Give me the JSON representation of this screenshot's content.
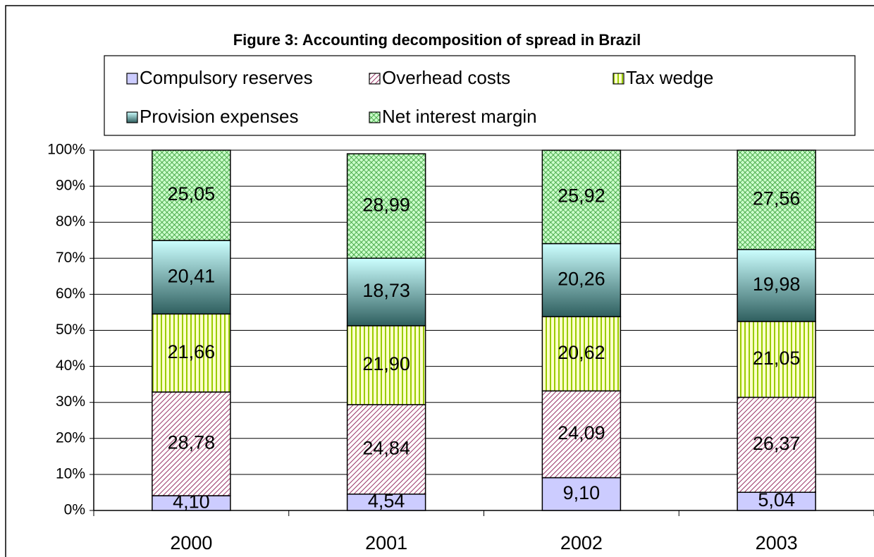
{
  "chart_data": {
    "type": "stacked_bar",
    "title": "Figure 3: Accounting decomposition of spread in Brazil",
    "categories": [
      "2000",
      "2001",
      "2002",
      "2003"
    ],
    "series": [
      {
        "name": "Compulsory reserves",
        "color": "#ccccff",
        "values": [
          4.1,
          4.54,
          9.1,
          5.04
        ],
        "value_labels": [
          "4,10",
          "4,54",
          "9,10",
          "5,04"
        ]
      },
      {
        "name": "Overhead costs",
        "color": "#993366",
        "values": [
          28.78,
          24.84,
          24.09,
          26.37
        ],
        "value_labels": [
          "28,78",
          "24,84",
          "24,09",
          "26,37"
        ]
      },
      {
        "name": "Tax wedge",
        "color": "#99cc00",
        "values": [
          21.66,
          21.9,
          20.62,
          21.05
        ],
        "value_labels": [
          "21,66",
          "21,90",
          "20,62",
          "21,05"
        ]
      },
      {
        "name": "Provision expenses",
        "color": "#339999",
        "values": [
          20.41,
          18.73,
          20.26,
          19.98
        ],
        "value_labels": [
          "20,41",
          "18,73",
          "20,26",
          "19,98"
        ]
      },
      {
        "name": "Net interest margin",
        "color": "#339933",
        "values": [
          25.05,
          28.99,
          25.92,
          27.56
        ],
        "value_labels": [
          "25,05",
          "28,99",
          "25,92",
          "27,56"
        ]
      }
    ],
    "ylim": [
      0,
      100
    ],
    "yticks": [
      {
        "value": 0,
        "label": "0%"
      },
      {
        "value": 10,
        "label": "10%"
      },
      {
        "value": 20,
        "label": "20%"
      },
      {
        "value": 30,
        "label": "30%"
      },
      {
        "value": 40,
        "label": "40%"
      },
      {
        "value": 50,
        "label": "50%"
      },
      {
        "value": 60,
        "label": "60%"
      },
      {
        "value": 70,
        "label": "70%"
      },
      {
        "value": 80,
        "label": "80%"
      },
      {
        "value": 90,
        "label": "90%"
      },
      {
        "value": 100,
        "label": "100%"
      }
    ],
    "grid": true
  }
}
